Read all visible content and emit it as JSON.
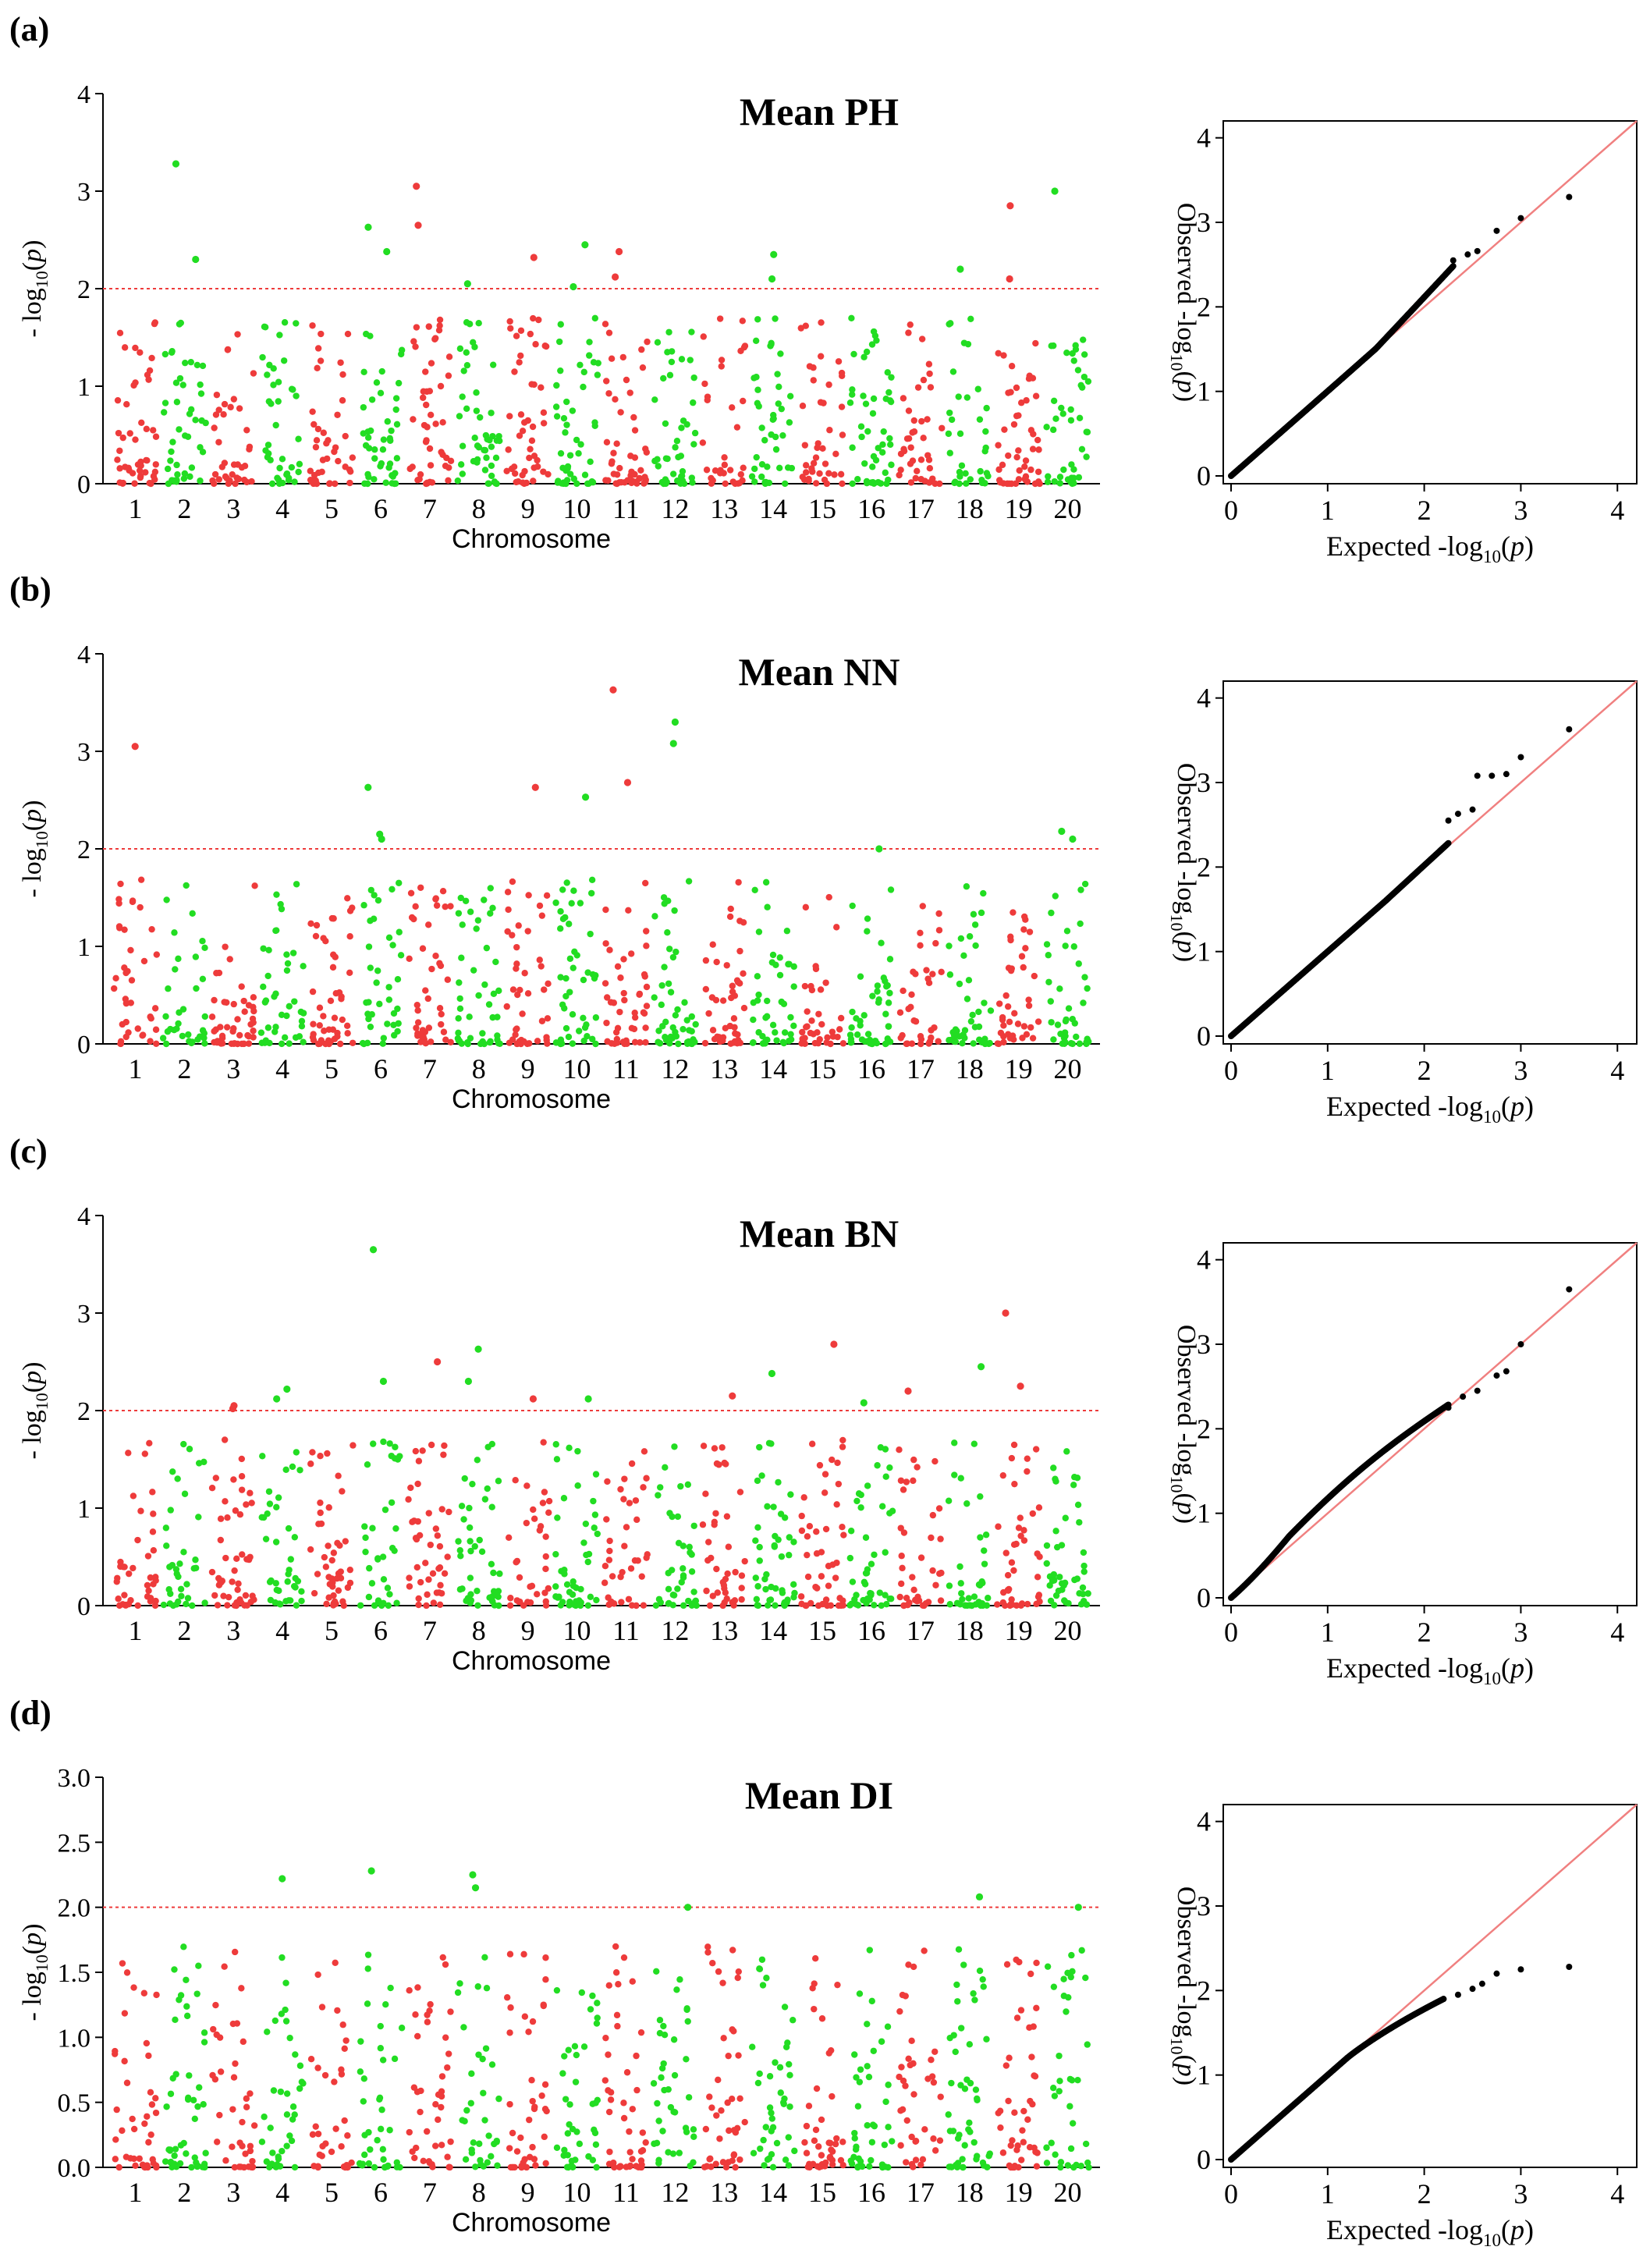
{
  "figure": {
    "dot_colors": {
      "odd": "#ee3b3b",
      "even": "#22dd22"
    },
    "threshold_color": "#ee3b3b",
    "qq_point_color": "#000000",
    "qq_line_color": "#f08080"
  },
  "chart_data": [
    {
      "panel_label": "(a)",
      "type": "scatter",
      "subtype": "manhattan",
      "title": "Mean PH",
      "xlabel": "Chromosome",
      "ylabel": "- log10(p)",
      "chromosomes": [
        "1",
        "2",
        "3",
        "4",
        "5",
        "6",
        "7",
        "8",
        "9",
        "10",
        "11",
        "12",
        "13",
        "14",
        "15",
        "16",
        "17",
        "18",
        "19",
        "20"
      ],
      "ylim": [
        0,
        4
      ],
      "yticks": [
        "0",
        "1",
        "2",
        "3",
        "4"
      ],
      "threshold": 2,
      "peaks": [
        {
          "chr": "2",
          "value": 3.28
        },
        {
          "chr": "2",
          "value": 2.3
        },
        {
          "chr": "6",
          "value": 2.63
        },
        {
          "chr": "6",
          "value": 2.38
        },
        {
          "chr": "7",
          "value": 3.05
        },
        {
          "chr": "7",
          "value": 2.65
        },
        {
          "chr": "8",
          "value": 2.05
        },
        {
          "chr": "9",
          "value": 2.32
        },
        {
          "chr": "10",
          "value": 2.45
        },
        {
          "chr": "10",
          "value": 2.02
        },
        {
          "chr": "11",
          "value": 2.38
        },
        {
          "chr": "11",
          "value": 2.12
        },
        {
          "chr": "14",
          "value": 2.35
        },
        {
          "chr": "14",
          "value": 2.1
        },
        {
          "chr": "18",
          "value": 2.2
        },
        {
          "chr": "19",
          "value": 2.1
        },
        {
          "chr": "19",
          "value": 2.85
        },
        {
          "chr": "20",
          "value": 3.0
        }
      ],
      "qq": {
        "type": "scatter",
        "subtype": "qq",
        "xlabel": "Expected -log10(p)",
        "ylabel": "Observed -log10(p)",
        "xlim": [
          0,
          4.2
        ],
        "ylim": [
          0,
          4.2
        ],
        "xticks": [
          "0",
          "1",
          "2",
          "3",
          "4"
        ],
        "yticks": [
          "0",
          "1",
          "2",
          "3",
          "4"
        ],
        "shape": "above",
        "tail": [
          [
            2.3,
            2.55
          ],
          [
            2.45,
            2.62
          ],
          [
            2.55,
            2.66
          ],
          [
            2.75,
            2.9
          ],
          [
            3.0,
            3.05
          ],
          [
            3.5,
            3.3
          ]
        ]
      }
    },
    {
      "panel_label": "(b)",
      "type": "scatter",
      "subtype": "manhattan",
      "title": "Mean NN",
      "xlabel": "Chromosome",
      "ylabel": "- log10(p)",
      "chromosomes": [
        "1",
        "2",
        "3",
        "4",
        "5",
        "6",
        "7",
        "8",
        "9",
        "10",
        "11",
        "12",
        "13",
        "14",
        "15",
        "16",
        "17",
        "18",
        "19",
        "20"
      ],
      "ylim": [
        0,
        4
      ],
      "yticks": [
        "0",
        "1",
        "2",
        "3",
        "4"
      ],
      "threshold": 2,
      "peaks": [
        {
          "chr": "1",
          "value": 3.05
        },
        {
          "chr": "6",
          "value": 2.63
        },
        {
          "chr": "6",
          "value": 2.15
        },
        {
          "chr": "6",
          "value": 2.1
        },
        {
          "chr": "9",
          "value": 2.63
        },
        {
          "chr": "10",
          "value": 2.53
        },
        {
          "chr": "11",
          "value": 3.63
        },
        {
          "chr": "11",
          "value": 2.68
        },
        {
          "chr": "12",
          "value": 3.3
        },
        {
          "chr": "12",
          "value": 3.08
        },
        {
          "chr": "16",
          "value": 2.0
        },
        {
          "chr": "20",
          "value": 2.18
        },
        {
          "chr": "20",
          "value": 2.1
        }
      ],
      "qq": {
        "type": "scatter",
        "subtype": "qq",
        "xlabel": "Expected -log10(p)",
        "ylabel": "Observed -log10(p)",
        "xlim": [
          0,
          4.2
        ],
        "ylim": [
          0,
          4.2
        ],
        "xticks": [
          "0",
          "1",
          "2",
          "3",
          "4"
        ],
        "yticks": [
          "0",
          "1",
          "2",
          "3",
          "4"
        ],
        "shape": "near",
        "tail": [
          [
            2.25,
            2.55
          ],
          [
            2.35,
            2.63
          ],
          [
            2.5,
            2.68
          ],
          [
            2.55,
            3.08
          ],
          [
            2.7,
            3.08
          ],
          [
            2.85,
            3.1
          ],
          [
            3.0,
            3.3
          ],
          [
            3.5,
            3.63
          ]
        ]
      }
    },
    {
      "panel_label": "(c)",
      "type": "scatter",
      "subtype": "manhattan",
      "title": "Mean BN",
      "xlabel": "Chromosome",
      "ylabel": "- log10(p)",
      "chromosomes": [
        "1",
        "2",
        "3",
        "4",
        "5",
        "6",
        "7",
        "8",
        "9",
        "10",
        "11",
        "12",
        "13",
        "14",
        "15",
        "16",
        "17",
        "18",
        "19",
        "20"
      ],
      "ylim": [
        0,
        4
      ],
      "yticks": [
        "0",
        "1",
        "2",
        "3",
        "4"
      ],
      "threshold": 2,
      "peaks": [
        {
          "chr": "3",
          "value": 2.05
        },
        {
          "chr": "3",
          "value": 2.02
        },
        {
          "chr": "4",
          "value": 2.12
        },
        {
          "chr": "4",
          "value": 2.22
        },
        {
          "chr": "6",
          "value": 3.65
        },
        {
          "chr": "6",
          "value": 2.3
        },
        {
          "chr": "7",
          "value": 2.5
        },
        {
          "chr": "8",
          "value": 2.63
        },
        {
          "chr": "8",
          "value": 2.3
        },
        {
          "chr": "9",
          "value": 2.12
        },
        {
          "chr": "10",
          "value": 2.12
        },
        {
          "chr": "13",
          "value": 2.15
        },
        {
          "chr": "14",
          "value": 2.38
        },
        {
          "chr": "15",
          "value": 2.68
        },
        {
          "chr": "16",
          "value": 2.08
        },
        {
          "chr": "17",
          "value": 2.2
        },
        {
          "chr": "18",
          "value": 2.45
        },
        {
          "chr": "19",
          "value": 3.0
        },
        {
          "chr": "19",
          "value": 2.25
        }
      ],
      "qq": {
        "type": "scatter",
        "subtype": "qq",
        "xlabel": "Expected -log10(p)",
        "ylabel": "Observed -log10(p)",
        "xlim": [
          0,
          4.2
        ],
        "ylim": [
          0,
          4.2
        ],
        "xticks": [
          "0",
          "1",
          "2",
          "3",
          "4"
        ],
        "yticks": [
          "0",
          "1",
          "2",
          "3",
          "4"
        ],
        "shape": "bulge",
        "tail": [
          [
            2.25,
            2.25
          ],
          [
            2.4,
            2.38
          ],
          [
            2.55,
            2.45
          ],
          [
            2.75,
            2.63
          ],
          [
            2.85,
            2.68
          ],
          [
            3.0,
            3.0
          ],
          [
            3.5,
            3.65
          ]
        ]
      }
    },
    {
      "panel_label": "(d)",
      "type": "scatter",
      "subtype": "manhattan",
      "title": "Mean DI",
      "xlabel": "Chromosome",
      "ylabel": "- log10(p)",
      "chromosomes": [
        "1",
        "2",
        "3",
        "4",
        "5",
        "6",
        "7",
        "8",
        "9",
        "10",
        "11",
        "12",
        "13",
        "14",
        "15",
        "16",
        "17",
        "18",
        "19",
        "20"
      ],
      "ylim": [
        0,
        3
      ],
      "yticks": [
        "0.0",
        "0.5",
        "1.0",
        "1.5",
        "2.0",
        "2.5",
        "3.0"
      ],
      "threshold": 2,
      "peaks": [
        {
          "chr": "4",
          "value": 2.22
        },
        {
          "chr": "6",
          "value": 2.28
        },
        {
          "chr": "8",
          "value": 2.25
        },
        {
          "chr": "8",
          "value": 2.15
        },
        {
          "chr": "12",
          "value": 2.0
        },
        {
          "chr": "18",
          "value": 2.08
        },
        {
          "chr": "20",
          "value": 2.0
        }
      ],
      "qq": {
        "type": "scatter",
        "subtype": "qq",
        "xlabel": "Expected -log10(p)",
        "ylabel": "Observed -log10(p)",
        "xlim": [
          0,
          4.2
        ],
        "ylim": [
          0,
          4.2
        ],
        "xticks": [
          "0",
          "1",
          "2",
          "3",
          "4"
        ],
        "yticks": [
          "0",
          "1",
          "2",
          "3",
          "4"
        ],
        "shape": "below",
        "tail": [
          [
            2.2,
            1.9
          ],
          [
            2.35,
            1.95
          ],
          [
            2.5,
            2.02
          ],
          [
            2.6,
            2.08
          ],
          [
            2.75,
            2.2
          ],
          [
            3.0,
            2.25
          ],
          [
            3.5,
            2.28
          ]
        ]
      }
    }
  ]
}
